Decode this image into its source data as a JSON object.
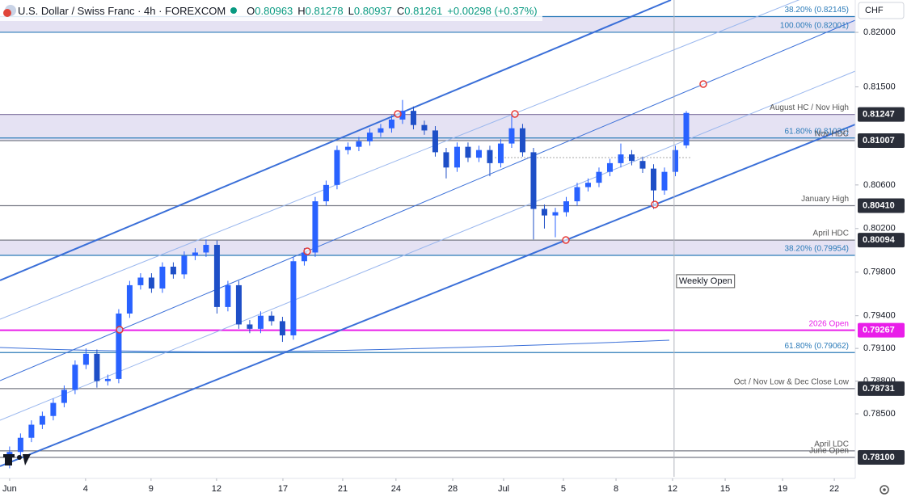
{
  "header": {
    "title": "U.S. Dollar / Swiss Franc · 4h · FOREXCOM",
    "quote": [
      {
        "key": "O",
        "value": "0.80963"
      },
      {
        "key": "H",
        "value": "0.81278"
      },
      {
        "key": "L",
        "value": "0.80937"
      },
      {
        "key": "C",
        "value": "0.81261"
      }
    ],
    "change": "+0.00298 (+0.37%)",
    "currency": "CHF"
  },
  "chart_data": {
    "type": "candlestick",
    "color": "#2962ff",
    "x": [
      0,
      0.5,
      1,
      1.5,
      2,
      2.5,
      3,
      3.5,
      4,
      4.5,
      5,
      5.5,
      6,
      6.5,
      7,
      7.5,
      8,
      8.5,
      9,
      9.5,
      10,
      10.5,
      11,
      11.5,
      12,
      12.5,
      13,
      13.5,
      14,
      14.5,
      15,
      15.5,
      16,
      16.5,
      17,
      17.5,
      18,
      18.5,
      19,
      19.5,
      20,
      20.5,
      21,
      21.5,
      22,
      22.5,
      23,
      23.5,
      24,
      24.5,
      25,
      25.5,
      26,
      26.5,
      27,
      27.5,
      28,
      28.5,
      29,
      29.5,
      30,
      30.5,
      31
    ],
    "candles": [
      [
        0.781,
        0.782,
        0.78,
        0.7815
      ],
      [
        0.7815,
        0.7832,
        0.7811,
        0.7828
      ],
      [
        0.7828,
        0.7844,
        0.7824,
        0.784
      ],
      [
        0.784,
        0.7852,
        0.7836,
        0.7848
      ],
      [
        0.7848,
        0.7864,
        0.7844,
        0.786
      ],
      [
        0.786,
        0.7876,
        0.7856,
        0.7872
      ],
      [
        0.7872,
        0.7899,
        0.7868,
        0.7895
      ],
      [
        0.7895,
        0.791,
        0.7891,
        0.7905
      ],
      [
        0.7905,
        0.7909,
        0.7874,
        0.788
      ],
      [
        0.788,
        0.7886,
        0.7876,
        0.7882
      ],
      [
        0.7882,
        0.7946,
        0.7878,
        0.7942
      ],
      [
        0.7942,
        0.7972,
        0.7938,
        0.7968
      ],
      [
        0.7968,
        0.7979,
        0.7964,
        0.7975
      ],
      [
        0.7975,
        0.7979,
        0.7961,
        0.7965
      ],
      [
        0.7965,
        0.7989,
        0.7961,
        0.7985
      ],
      [
        0.7985,
        0.7989,
        0.7974,
        0.7978
      ],
      [
        0.7978,
        0.7999,
        0.7974,
        0.7995
      ],
      [
        0.7995,
        0.8002,
        0.7991,
        0.7998
      ],
      [
        0.7998,
        0.801,
        0.7994,
        0.8005
      ],
      [
        0.8005,
        0.8009,
        0.7942,
        0.7948
      ],
      [
        0.7948,
        0.7972,
        0.7944,
        0.7968
      ],
      [
        0.7968,
        0.7972,
        0.7928,
        0.7932
      ],
      [
        0.7932,
        0.7936,
        0.7924,
        0.7928
      ],
      [
        0.7928,
        0.7944,
        0.7924,
        0.794
      ],
      [
        0.794,
        0.7944,
        0.7931,
        0.7935
      ],
      [
        0.7935,
        0.7939,
        0.7916,
        0.7922
      ],
      [
        0.7922,
        0.7994,
        0.7918,
        0.799
      ],
      [
        0.799,
        0.8002,
        0.7986,
        0.7998
      ],
      [
        0.7998,
        0.8049,
        0.7994,
        0.8045
      ],
      [
        0.8045,
        0.8064,
        0.8041,
        0.806
      ],
      [
        0.806,
        0.8096,
        0.8056,
        0.8092
      ],
      [
        0.8092,
        0.8099,
        0.8088,
        0.8095
      ],
      [
        0.8095,
        0.8104,
        0.8091,
        0.81
      ],
      [
        0.81,
        0.8112,
        0.8096,
        0.8108
      ],
      [
        0.8108,
        0.8116,
        0.8104,
        0.8112
      ],
      [
        0.8112,
        0.8124,
        0.8108,
        0.812
      ],
      [
        0.812,
        0.8138,
        0.8116,
        0.8128
      ],
      [
        0.8128,
        0.8132,
        0.8111,
        0.8115
      ],
      [
        0.8115,
        0.8119,
        0.8106,
        0.811
      ],
      [
        0.811,
        0.8114,
        0.8086,
        0.809
      ],
      [
        0.809,
        0.8094,
        0.8066,
        0.8076
      ],
      [
        0.8076,
        0.8099,
        0.8072,
        0.8095
      ],
      [
        0.8095,
        0.8099,
        0.8081,
        0.8085
      ],
      [
        0.8085,
        0.8096,
        0.8081,
        0.8092
      ],
      [
        0.8092,
        0.8096,
        0.8068,
        0.808
      ],
      [
        0.808,
        0.8102,
        0.8076,
        0.8098
      ],
      [
        0.8098,
        0.8124,
        0.8094,
        0.8112
      ],
      [
        0.8112,
        0.8116,
        0.8086,
        0.809
      ],
      [
        0.809,
        0.8094,
        0.801,
        0.8038
      ],
      [
        0.8038,
        0.8042,
        0.802,
        0.8032
      ],
      [
        0.8032,
        0.8039,
        0.8012,
        0.8035
      ],
      [
        0.8035,
        0.8049,
        0.8031,
        0.8045
      ],
      [
        0.8045,
        0.8062,
        0.8041,
        0.8058
      ],
      [
        0.8058,
        0.8066,
        0.8054,
        0.8062
      ],
      [
        0.8062,
        0.8076,
        0.8058,
        0.8072
      ],
      [
        0.8072,
        0.8084,
        0.8068,
        0.808
      ],
      [
        0.808,
        0.8098,
        0.8076,
        0.8088
      ],
      [
        0.8088,
        0.8092,
        0.8078,
        0.8082
      ],
      [
        0.8082,
        0.8086,
        0.8071,
        0.8075
      ],
      [
        0.8075,
        0.8079,
        0.8038,
        0.8055
      ],
      [
        0.8055,
        0.8076,
        0.8051,
        0.8072
      ],
      [
        0.8072,
        0.8096,
        0.8068,
        0.8092
      ],
      [
        0.80963,
        0.81278,
        0.80937,
        0.81261
      ]
    ],
    "xlim": [
      -0.44,
      38.74
    ],
    "xticks": [
      {
        "value": 0,
        "label": "Jun"
      },
      {
        "value": 3.48,
        "label": "4"
      },
      {
        "value": 6.48,
        "label": "9"
      },
      {
        "value": 9.48,
        "label": "12"
      },
      {
        "value": 12.52,
        "label": "17"
      },
      {
        "value": 15.26,
        "label": "21"
      },
      {
        "value": 17.7,
        "label": "24"
      },
      {
        "value": 20.3,
        "label": "28"
      },
      {
        "value": 22.63,
        "label": "Jul"
      },
      {
        "value": 25.37,
        "label": "5"
      },
      {
        "value": 27.78,
        "label": "8"
      },
      {
        "value": 30.37,
        "label": "12"
      },
      {
        "value": 32.78,
        "label": "15"
      },
      {
        "value": 35.41,
        "label": "19"
      },
      {
        "value": 37.78,
        "label": "22"
      }
    ],
    "ylim": [
      0.77922,
      0.82297
    ],
    "yticks": [
      {
        "value": 0.82,
        "label": "0.82000"
      },
      {
        "value": 0.815,
        "label": "0.81500"
      },
      {
        "value": 0.806,
        "label": "0.80600"
      },
      {
        "value": 0.802,
        "label": "0.80200"
      },
      {
        "value": 0.798,
        "label": "0.79800"
      },
      {
        "value": 0.794,
        "label": "0.79400"
      },
      {
        "value": 0.791,
        "label": "0.79100"
      },
      {
        "value": 0.788,
        "label": "0.78800"
      },
      {
        "value": 0.785,
        "label": "0.78500"
      }
    ],
    "zones": [
      [
        0.82001,
        0.82145
      ],
      [
        0.81007,
        0.81247
      ],
      [
        0.79954,
        0.80094
      ]
    ],
    "levels": [
      {
        "value": 0.82145,
        "label": "38.20% (0.82145)",
        "color": "#2b7bb9"
      },
      {
        "value": 0.82001,
        "label": "100.00% (0.82001)",
        "color": "#2b7bb9"
      },
      {
        "value": 0.81247,
        "label": "August HC / Nov High",
        "axis_label": "0.81247",
        "color": "#8a7fa8"
      },
      {
        "value": 0.81031,
        "label": "61.80% (0.81031)",
        "color": "#2b7bb9"
      },
      {
        "value": 0.81007,
        "label": "Nov HDC",
        "axis_label": "0.81007",
        "color": "#787b86"
      },
      {
        "value": 0.8041,
        "label": "January High",
        "axis_label": "0.80410",
        "color": "#787b86"
      },
      {
        "value": 0.80094,
        "label": "April HDC",
        "axis_label": "0.80094",
        "color": "#787b86"
      },
      {
        "value": 0.79954,
        "label": "38.20% (0.79954)",
        "color": "#2b7bb9"
      },
      {
        "value": 0.79267,
        "label": "2026 Open",
        "axis_label": "0.79267",
        "color": "#e91ee9"
      },
      {
        "value": 0.79062,
        "label": "61.80% (0.79062)",
        "color": "#2b7bb9"
      },
      {
        "value": 0.78731,
        "label": "Oct / Nov Low & Dec Close Low",
        "axis_label": "0.78731",
        "color": "#787b86"
      },
      {
        "value": 0.7816,
        "label": "April LDC",
        "color": "#787b86"
      },
      {
        "value": 0.781,
        "label": "June Open",
        "axis_label": "0.78100",
        "color": "#787b86"
      }
    ],
    "weekly_open": {
      "label": "Weekly Open",
      "x": 30.44
    }
  }
}
